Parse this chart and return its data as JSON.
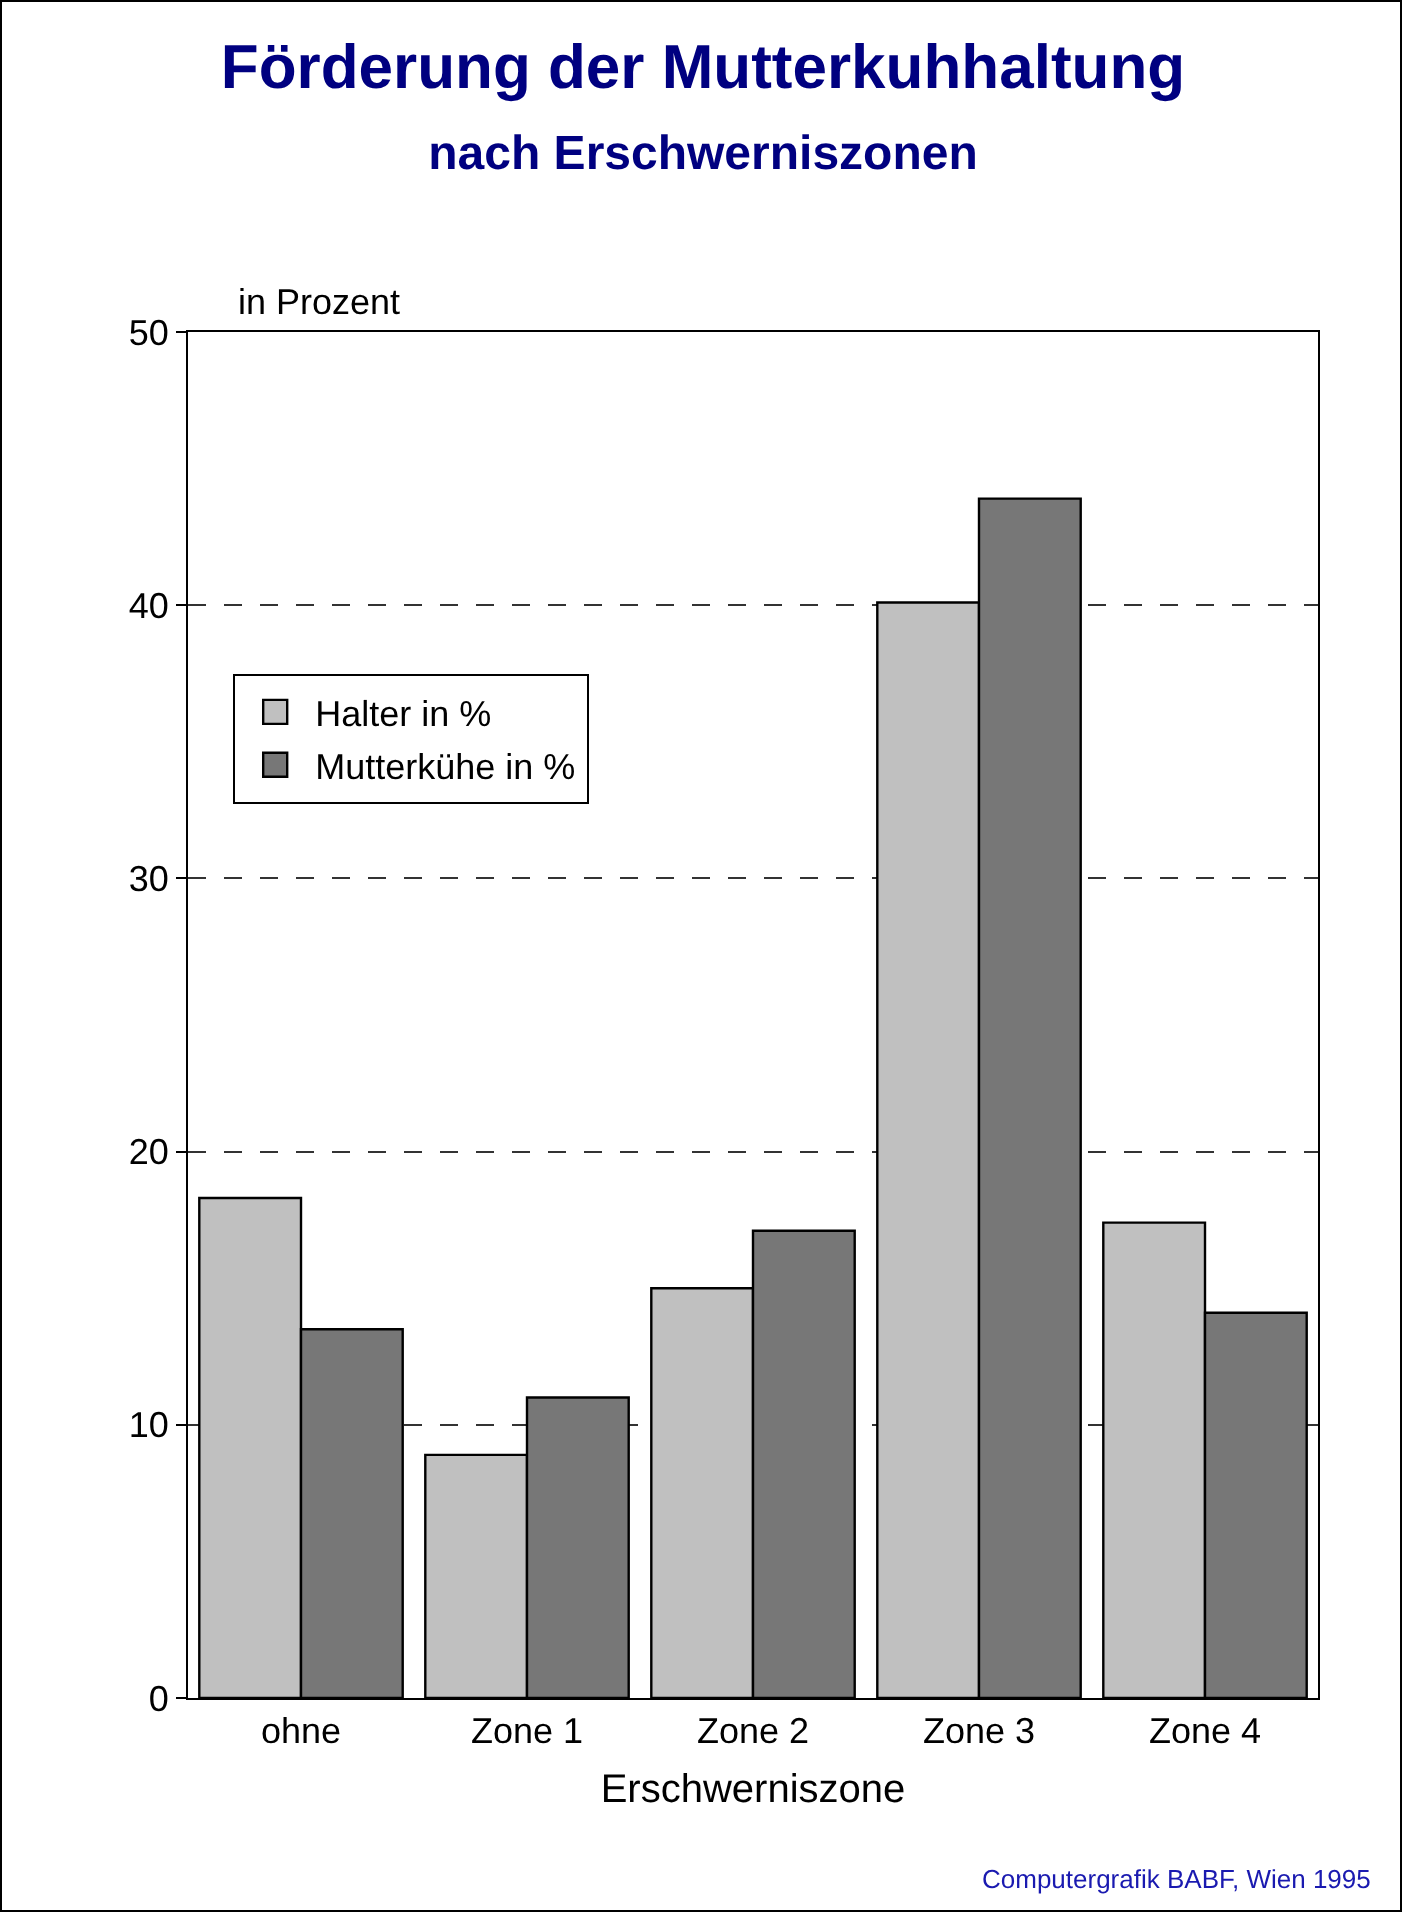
{
  "chart_data": {
    "type": "bar",
    "title": "Förderung der Mutterkuhhaltung",
    "subtitle": "nach Erschwerniszonen",
    "xlabel": "Erschwerniszone",
    "ylabel": "in Prozent",
    "categories": [
      "ohne",
      "Zone 1",
      "Zone 2",
      "Zone 3",
      "Zone 4"
    ],
    "series": [
      {
        "name": "Halter in %",
        "color": "#c0c0c0",
        "values": [
          18.3,
          8.9,
          15.0,
          40.1,
          17.4
        ]
      },
      {
        "name": "Mutterkühe in %",
        "color": "#777777",
        "values": [
          13.5,
          11.0,
          17.1,
          43.9,
          14.1
        ]
      }
    ],
    "ylim": [
      0,
      50
    ],
    "yticks": [
      0,
      10,
      20,
      30,
      40,
      50
    ],
    "grid": "y",
    "legend": "top left",
    "annotations": [
      "Computergrafik BABF, Wien 1995"
    ]
  }
}
